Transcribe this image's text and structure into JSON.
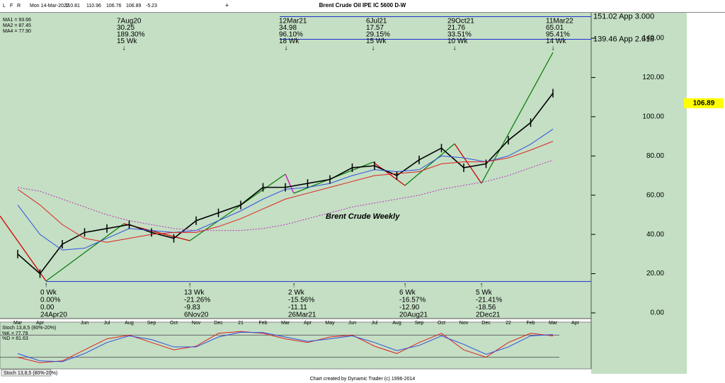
{
  "header": {
    "title": "Brent Crude Oil IPE IC 5600 D-W",
    "buttons": [
      "L",
      "F",
      "R"
    ],
    "quote": [
      "Mon 14-Mar-2022",
      "110.81",
      "110.96",
      "106.76",
      "106.89",
      "-5.23"
    ],
    "plus": "+"
  },
  "footer": "Chart created by Dynamic Trader  (c) 1996-2014",
  "annotations": {
    "label": "Brent Crude Weekly",
    "top": [
      [
        "7Aug20",
        "30.25",
        "189.30%",
        "15 Wk",
        "↓"
      ],
      [
        "12Mar21",
        "34.98",
        "96.10%",
        "18 Wk",
        "↓"
      ],
      [
        "6Jul21",
        "17.57",
        "29.15%",
        "15 Wk",
        "↓"
      ],
      [
        "29Oct21",
        "21.76",
        "33.51%",
        "10 Wk",
        "↓"
      ],
      [
        "11Mar22",
        "65.01",
        "95.41%",
        "14 Wk",
        "↓"
      ]
    ],
    "bottom": [
      [
        "↑",
        "0 Wk",
        "0.00%",
        "0.00",
        "24Apr20"
      ],
      [
        "↑",
        "13 Wk",
        "-21.26%",
        "-9.83",
        "6Nov20"
      ],
      [
        "↑",
        "2 Wk",
        "-15.56%",
        "-11.11",
        "26Mar21"
      ],
      [
        "↑",
        "6 Wk",
        "-16.57%",
        "-12.90",
        "20Aug21"
      ],
      [
        "↑",
        "5 Wk",
        "-21.41%",
        "-18.56",
        "2Dec21"
      ]
    ]
  },
  "chart_data": [
    {
      "type": "line",
      "categories": [
        "Mar",
        "Apr",
        null,
        "Jun",
        "Jul",
        "Aug",
        "Sep",
        "Oct",
        "Nov",
        "Dec",
        "21",
        "Feb",
        "Mar",
        "Apr",
        "May",
        "Jun",
        "Jul",
        "Aug",
        "Sep",
        "Oct",
        "Nov",
        "Dec",
        "22",
        "Feb",
        "Mar",
        "Apr"
      ],
      "ylim": [
        -2.9,
        153
      ],
      "yticks": [
        {
          "value": 0,
          "label": "0.00"
        },
        {
          "value": 20,
          "label": "20.00"
        },
        {
          "value": 40,
          "label": "40.00"
        },
        {
          "value": 60,
          "label": "60.00"
        },
        {
          "value": 80,
          "label": "80.00"
        },
        {
          "value": 100,
          "label": "100.00"
        },
        {
          "value": 120,
          "label": "120.00"
        },
        {
          "value": 140,
          "label": "140.00"
        }
      ],
      "levels": [
        {
          "value": 151.02,
          "label": "151.02 App 3.000"
        },
        {
          "value": 139.46,
          "label": "139.46 App 2.618"
        }
      ],
      "last": {
        "value": 106.89,
        "label": "106.89"
      },
      "low_line": 16,
      "series": [
        {
          "color": "#000000",
          "values": [
            30,
            20,
            35,
            41,
            43,
            45,
            41,
            38,
            47,
            51,
            55,
            64,
            64,
            66,
            68,
            74,
            75,
            70,
            78,
            84,
            74,
            76,
            88,
            97,
            112,
            null
          ]
        },
        {
          "name": "MA1",
          "legend": "MA1 = 93.66",
          "color": "#3050e0",
          "values": [
            55,
            40,
            32,
            33,
            38,
            43,
            42,
            41,
            42,
            47,
            52,
            58,
            63,
            64,
            66,
            70,
            73,
            72,
            73,
            80,
            79,
            77,
            80,
            86,
            93.66,
            null
          ]
        },
        {
          "name": "MA2",
          "legend": "MA2 = 87.45",
          "color": "#e02020",
          "values": [
            63,
            55,
            45,
            38,
            36,
            38,
            40,
            41,
            41,
            44,
            48,
            53,
            58,
            61,
            64,
            67,
            70,
            71,
            72,
            76,
            77,
            77,
            79,
            83,
            87.45,
            null
          ]
        },
        {
          "name": "MA4",
          "legend": "MA4 = 77.90",
          "color": "#c030c0",
          "dash": true,
          "values": [
            64,
            62,
            58,
            54,
            50,
            47,
            45,
            43,
            42,
            42,
            42,
            43,
            45,
            48,
            51,
            54,
            56,
            58,
            60,
            63,
            65,
            67,
            70,
            74,
            77.9,
            null
          ]
        }
      ]
    },
    {
      "type": "line",
      "title": "Stoch 13,8,5 (80%-20%)",
      "tab": "Stoch 13,8,5 (80%-20%)",
      "ylim": [
        0,
        100
      ],
      "yticks": [
        20,
        80
      ],
      "series": [
        {
          "name": "%K",
          "legend": "%K = 77.79",
          "color": "#e02020",
          "values": [
            20,
            5,
            10,
            40,
            70,
            80,
            60,
            40,
            50,
            85,
            90,
            85,
            70,
            60,
            75,
            80,
            50,
            30,
            60,
            85,
            40,
            20,
            60,
            85,
            77.79,
            null
          ]
        },
        {
          "name": "%D",
          "legend": "%D = 81.63",
          "color": "#3050e0",
          "values": [
            30,
            10,
            8,
            30,
            60,
            78,
            68,
            48,
            48,
            75,
            88,
            87,
            75,
            63,
            70,
            78,
            60,
            38,
            52,
            78,
            55,
            28,
            48,
            78,
            81.63,
            null
          ]
        }
      ]
    }
  ]
}
